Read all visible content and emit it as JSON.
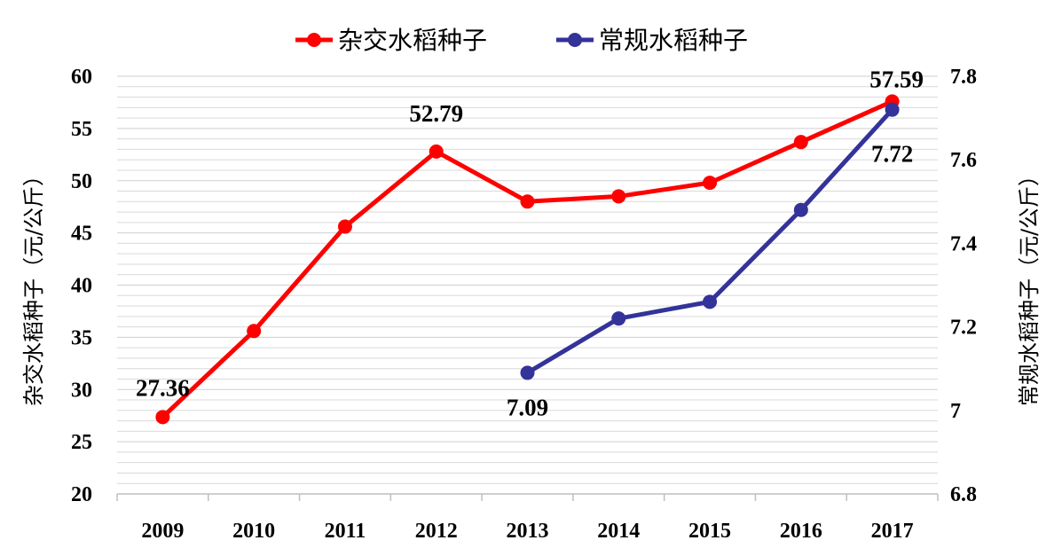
{
  "chart_data": {
    "type": "line",
    "categories": [
      "2009",
      "2010",
      "2011",
      "2012",
      "2013",
      "2014",
      "2015",
      "2016",
      "2017"
    ],
    "series": [
      {
        "name": "杂交水稻种子",
        "axis": "left",
        "color": "#ff0000",
        "values": [
          27.36,
          35.6,
          45.6,
          52.79,
          48.0,
          48.5,
          49.8,
          53.7,
          57.59
        ]
      },
      {
        "name": "常规水稻种子",
        "axis": "right",
        "color": "#333399",
        "values": [
          null,
          null,
          null,
          null,
          7.09,
          7.22,
          7.26,
          7.48,
          7.72
        ]
      }
    ],
    "ylabel_left": "杂交水稻种子（元/公斤）",
    "ylabel_right": "常规水稻种子（元/公斤）",
    "ylim_left": [
      20,
      60
    ],
    "ylim_right": [
      6.8,
      7.8
    ],
    "yticks_left": [
      "20",
      "25",
      "30",
      "35",
      "40",
      "45",
      "50",
      "55",
      "60"
    ],
    "yticks_right": [
      "6.8",
      "7",
      "7.2",
      "7.4",
      "7.6",
      "7.8"
    ],
    "data_labels": [
      {
        "series": 0,
        "index": 0,
        "text": "27.36"
      },
      {
        "series": 0,
        "index": 3,
        "text": "52.79"
      },
      {
        "series": 0,
        "index": 8,
        "text": "57.59"
      },
      {
        "series": 1,
        "index": 4,
        "text": "7.09"
      },
      {
        "series": 1,
        "index": 8,
        "text": "7.72"
      }
    ],
    "legend_position": "top",
    "grid": true
  }
}
